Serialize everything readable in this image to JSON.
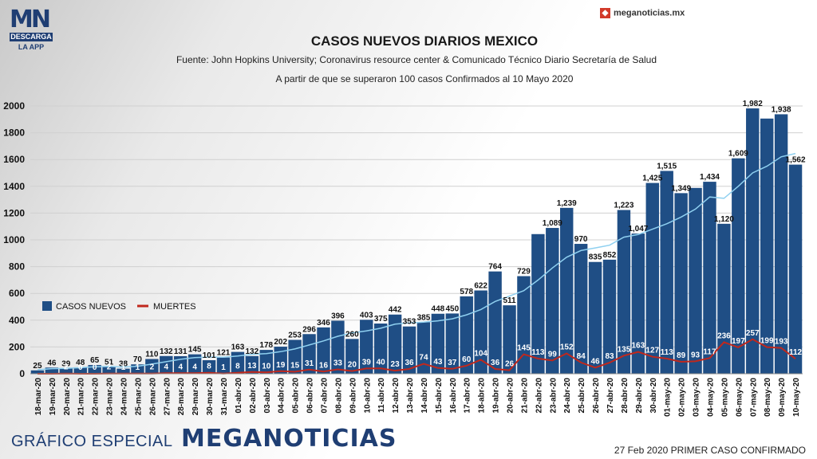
{
  "logo": {
    "mark": "MN",
    "line1": "DESCARGA",
    "line2": "LA APP"
  },
  "brand_top": {
    "icon": "meganoticias-square-icon",
    "text": "meganoticias.mx"
  },
  "footer": {
    "left": "GRÁFICO ESPECIAL",
    "brand": "MEGANOTICIAS",
    "right": "27 Feb 2020 PRIMER CASO CONFIRMADO"
  },
  "colors": {
    "bar": "#1f4e85",
    "deaths": "#c0281d",
    "trend": "#8fd0f0"
  },
  "chart_data": {
    "type": "bar",
    "title": "CASOS NUEVOS DIARIOS MEXICO",
    "subtitle": "Fuente: John Hopkins University; Coronavirus resource center & Comunicado Técnico Diario Secretaría de Salud",
    "subtitle2": "A partir de que se superaron 100 casos Confirmados al 10 Mayo 2020",
    "ylim": [
      0,
      2000
    ],
    "yticks": [
      0,
      200,
      400,
      600,
      800,
      1000,
      1200,
      1400,
      1600,
      1800,
      2000
    ],
    "grid": true,
    "legend_position": "left-middle",
    "categories": [
      "18-mar-20",
      "19-mar-20",
      "20-mar-20",
      "21-mar-20",
      "22-mar-20",
      "23-mar-20",
      "24-mar-20",
      "25-mar-20",
      "26-mar-20",
      "27-mar-20",
      "28-mar-20",
      "29-mar-20",
      "30-mar-20",
      "31-mar-20",
      "01-abr-20",
      "02-abr-20",
      "03-abr-20",
      "04-abr-20",
      "05-abr-20",
      "06-abr-20",
      "07-abr-20",
      "08-abr-20",
      "09-abr-20",
      "10-abr-20",
      "11-abr-20",
      "12-abr-20",
      "13-abr-20",
      "14-abr-20",
      "15-abr-20",
      "16-abr-20",
      "17-abr-20",
      "18-abr-20",
      "19-abr-20",
      "20-abr-20",
      "21-abr-20",
      "22-abr-20",
      "23-abr-20",
      "24-abr-20",
      "25-abr-20",
      "26-abr-20",
      "27-abr-20",
      "28-abr-20",
      "29-abr-20",
      "30-abr-20",
      "01-may-20",
      "02-may-20",
      "03-may-20",
      "04-may-20",
      "05-may-20",
      "06-may-20",
      "07-may-20",
      "08-may-20",
      "09-may-20",
      "10-may-20"
    ],
    "series": [
      {
        "name": "CASOS NUEVOS",
        "values": [
          25,
          46,
          39,
          48,
          65,
          51,
          38,
          70,
          110,
          132,
          131,
          145,
          101,
          121,
          163,
          132,
          178,
          202,
          253,
          296,
          346,
          396,
          260,
          403,
          375,
          442,
          353,
          385,
          448,
          450,
          578,
          622,
          764,
          511,
          729,
          1043,
          1089,
          1239,
          970,
          835,
          852,
          1223,
          1047,
          1425,
          1515,
          1349,
          1388,
          1434,
          1120,
          1609,
          1982,
          1906,
          1938,
          1562
        ],
        "labels": [
          "25",
          "46",
          "39",
          "48",
          "65",
          "51",
          "38",
          "70",
          "110",
          "132",
          "131",
          "145",
          "101",
          "121",
          "163",
          "132",
          "178",
          "202",
          "253",
          "296",
          "346",
          "396",
          "260",
          "403",
          "375",
          "442",
          "353",
          "385",
          "448",
          "450",
          "578",
          "622",
          "764",
          "511",
          "729",
          "",
          "1,089",
          "1,239",
          "970",
          "835",
          "852",
          "1,223",
          "1,047",
          "1,425",
          "1,515",
          "1,349",
          "",
          "1,434",
          "1,120",
          "1,609",
          "1,982",
          "",
          "1,938",
          "1,562"
        ]
      },
      {
        "name": "MUERTES",
        "values": [
          0,
          0,
          2,
          0,
          0,
          2,
          1,
          1,
          2,
          4,
          4,
          4,
          8,
          1,
          8,
          13,
          10,
          19,
          15,
          31,
          16,
          33,
          20,
          39,
          40,
          23,
          36,
          74,
          43,
          37,
          60,
          104,
          36,
          26,
          145,
          113,
          99,
          152,
          84,
          46,
          83,
          135,
          163,
          127,
          113,
          89,
          93,
          117,
          236,
          197,
          257,
          199,
          193,
          112
        ],
        "labels": [
          "",
          "",
          "2",
          "0",
          "0",
          "2",
          "1",
          "1",
          "2",
          "4",
          "4",
          "4",
          "8",
          "1",
          "8",
          "13",
          "10",
          "19",
          "15",
          "31",
          "16",
          "33",
          "20",
          "39",
          "40",
          "23",
          "36",
          "74",
          "43",
          "37",
          "60",
          "104",
          "36",
          "26",
          "145",
          "113",
          "99",
          "152",
          "84",
          "46",
          "83",
          "135",
          "163",
          "127",
          "113",
          "89",
          "93",
          "117",
          "236",
          "197",
          "257",
          "199",
          "193",
          "112"
        ]
      },
      {
        "values": [
          30,
          38,
          40,
          45,
          52,
          54,
          50,
          56,
          72,
          90,
          108,
          120,
          125,
          124,
          132,
          145,
          150,
          165,
          185,
          215,
          245,
          280,
          305,
          320,
          340,
          370,
          380,
          385,
          395,
          410,
          440,
          480,
          540,
          580,
          620,
          700,
          790,
          870,
          920,
          940,
          960,
          1020,
          1040,
          1080,
          1120,
          1170,
          1230,
          1320,
          1310,
          1400,
          1500,
          1550,
          1620,
          1645
        ]
      }
    ]
  }
}
